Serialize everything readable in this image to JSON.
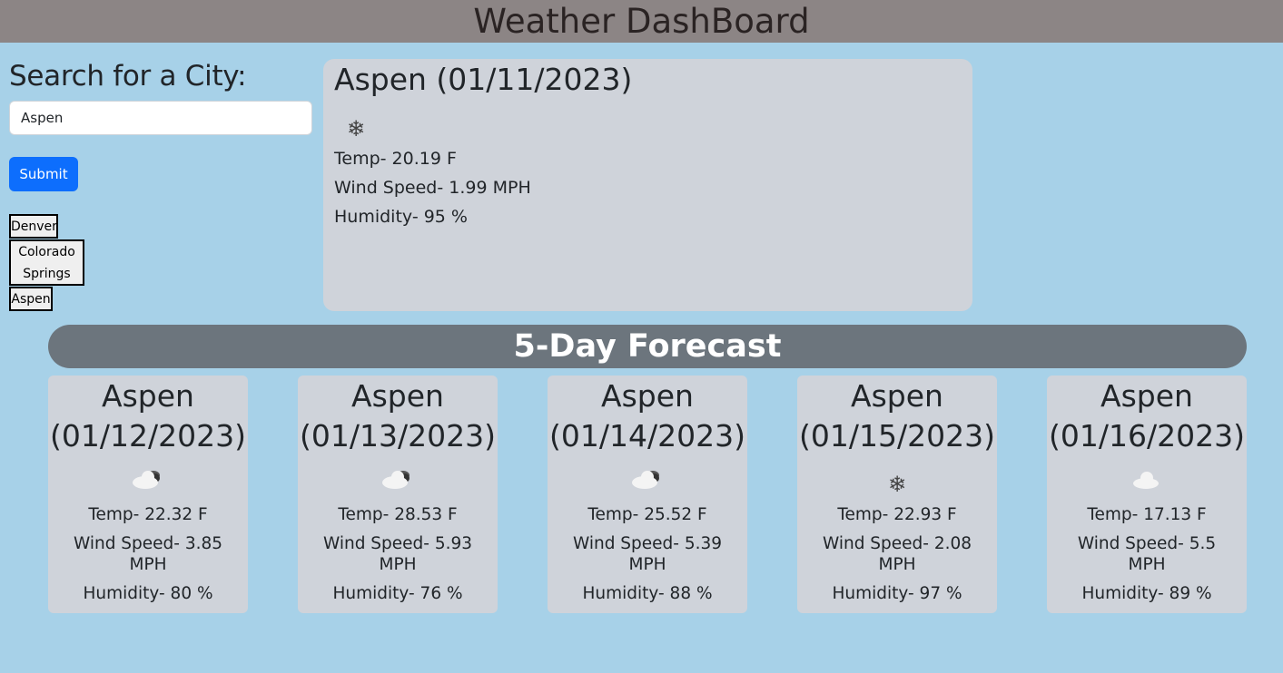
{
  "header": {
    "title": "Weather DashBoard"
  },
  "search": {
    "heading": "Search for a City:",
    "input_value": "Aspen",
    "submit_label": "Submit",
    "history": [
      "Denver",
      "Colorado Springs",
      "Aspen"
    ]
  },
  "current": {
    "title": "Aspen (01/11/2023)",
    "icon": "snow-icon",
    "temp": "Temp- 20.19 F",
    "wind": "Wind Speed- 1.99 MPH",
    "humidity": "Humidity- 95 %"
  },
  "forecast": {
    "heading": "5-Day Forecast",
    "days": [
      {
        "city": "Aspen",
        "date": "(01/12/2023)",
        "icon": "cloudy-icon",
        "temp": "Temp- 22.32 F",
        "wind": "Wind Speed- 3.85 MPH",
        "humidity": "Humidity- 80 %"
      },
      {
        "city": "Aspen",
        "date": "(01/13/2023)",
        "icon": "cloudy-icon",
        "temp": "Temp- 28.53 F",
        "wind": "Wind Speed- 5.93 MPH",
        "humidity": "Humidity- 76 %"
      },
      {
        "city": "Aspen",
        "date": "(01/14/2023)",
        "icon": "cloudy-icon",
        "temp": "Temp- 25.52 F",
        "wind": "Wind Speed- 5.39 MPH",
        "humidity": "Humidity- 88 %"
      },
      {
        "city": "Aspen",
        "date": "(01/15/2023)",
        "icon": "snow-icon",
        "temp": "Temp- 22.93 F",
        "wind": "Wind Speed- 2.08 MPH",
        "humidity": "Humidity- 97 %"
      },
      {
        "city": "Aspen",
        "date": "(01/16/2023)",
        "icon": "cloud-icon",
        "temp": "Temp- 17.13 F",
        "wind": "Wind Speed- 5.5 MPH",
        "humidity": "Humidity- 89 %"
      }
    ]
  }
}
